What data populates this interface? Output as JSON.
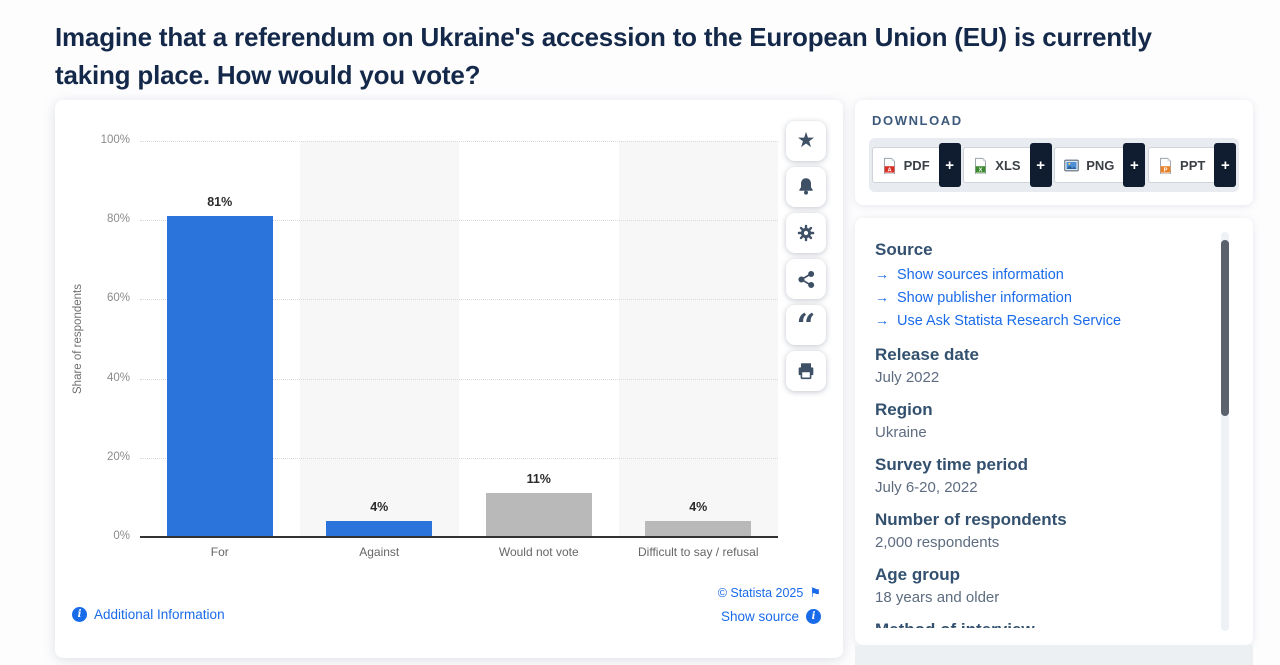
{
  "page": {
    "title": "Imagine that a referendum on Ukraine's accession to the European Union (EU) is currently taking place. How would you vote?"
  },
  "chart_data": {
    "type": "bar",
    "title": "Imagine that a referendum on Ukraine's accession to the European Union (EU) is currently taking place. How would you vote?",
    "categories": [
      "For",
      "Against",
      "Would not vote",
      "Difficult to say / refusal"
    ],
    "values": [
      81,
      4,
      11,
      4
    ],
    "value_labels": [
      "81%",
      "4%",
      "11%",
      "4%"
    ],
    "bar_colors": [
      "#2a74db",
      "#2a74db",
      "#b9b9b9",
      "#b9b9b9"
    ],
    "xlabel": "",
    "ylabel": "Share of respondents",
    "ylim": [
      0,
      100
    ],
    "ytick_interval": 20,
    "ytick_labels": [
      "0%",
      "20%",
      "40%",
      "60%",
      "80%",
      "100%"
    ],
    "grid": "horizontal dotted gridlines, alternating column background bands",
    "band_fill": "#f7f7f8",
    "legend": "none"
  },
  "toolbar": {
    "buttons": [
      {
        "name": "favorite",
        "icon": "star-icon"
      },
      {
        "name": "alerts",
        "icon": "bell-icon"
      },
      {
        "name": "settings",
        "icon": "gear-icon"
      },
      {
        "name": "share",
        "icon": "share-icon"
      },
      {
        "name": "cite",
        "icon": "quote-icon"
      },
      {
        "name": "print",
        "icon": "printer-icon"
      }
    ]
  },
  "chart_footer": {
    "additional_information": "Additional Information",
    "copyright": "© Statista 2025",
    "show_source": "Show source"
  },
  "download": {
    "header": "DOWNLOAD",
    "plus": "+",
    "buttons": [
      {
        "label": "PDF",
        "icon": "pdf-file-icon"
      },
      {
        "label": "XLS",
        "icon": "xls-file-icon"
      },
      {
        "label": "PNG",
        "icon": "png-file-icon"
      },
      {
        "label": "PPT",
        "icon": "ppt-file-icon"
      }
    ]
  },
  "info_panel": {
    "sections": [
      {
        "heading": "Source",
        "links": [
          "Show sources information",
          "Show publisher information",
          "Use Ask Statista Research Service"
        ]
      },
      {
        "heading": "Release date",
        "value": "July 2022"
      },
      {
        "heading": "Region",
        "value": "Ukraine"
      },
      {
        "heading": "Survey time period",
        "value": "July 6-20, 2022"
      },
      {
        "heading": "Number of respondents",
        "value": "2,000 respondents"
      },
      {
        "heading": "Age group",
        "value": "18 years and older"
      },
      {
        "heading": "Method of interview",
        "value": "",
        "clipped": true
      }
    ]
  },
  "colors": {
    "accent_blue": "#2a74db",
    "bar_gray": "#b9b9b9",
    "link_blue": "#1a6bea",
    "heading_navy": "#33516f",
    "title_navy": "#14294a"
  }
}
